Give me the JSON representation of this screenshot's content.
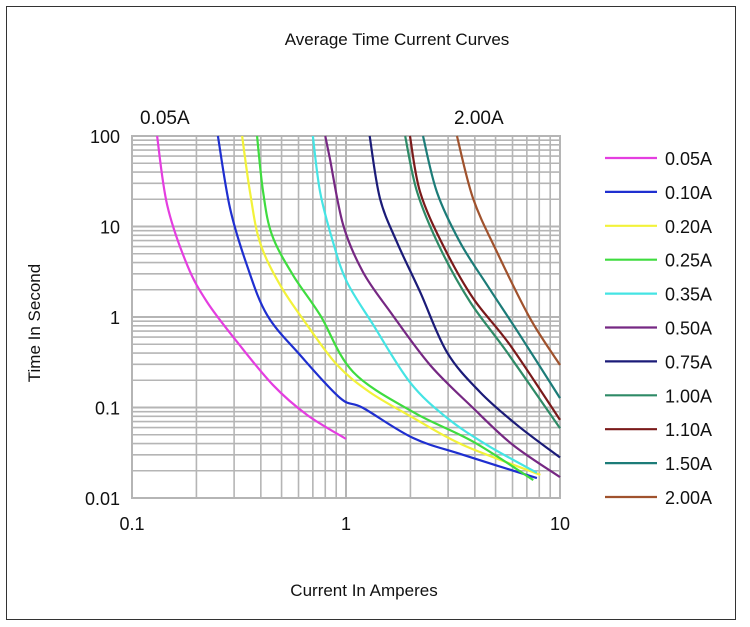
{
  "chart_data": {
    "type": "line",
    "title": "Average Time Current Curves",
    "xlabel": "Current In Amperes",
    "ylabel": "Time In Second",
    "xscale": "log",
    "yscale": "log",
    "xlim": [
      0.1,
      10
    ],
    "ylim": [
      0.01,
      100
    ],
    "xticks": [
      "0.1",
      "1",
      "10"
    ],
    "yticks": [
      "100",
      "10",
      "1",
      "0.1",
      "0.01"
    ],
    "grid": true,
    "legend": "right",
    "annotations": [
      "0.05A",
      "2.00A"
    ],
    "series": [
      {
        "name": "0.05A",
        "color": "#e43ee0",
        "points": [
          [
            0.131,
            100
          ],
          [
            0.146,
            17.3
          ],
          [
            0.181,
            3.76
          ],
          [
            0.224,
            1.47
          ],
          [
            0.31,
            0.53
          ],
          [
            0.456,
            0.177
          ],
          [
            0.657,
            0.083
          ],
          [
            1.0,
            0.045
          ]
        ]
      },
      {
        "name": "0.10A",
        "color": "#1f2fd0",
        "points": [
          [
            0.252,
            100
          ],
          [
            0.287,
            16
          ],
          [
            0.344,
            3.76
          ],
          [
            0.428,
            1.05
          ],
          [
            0.61,
            0.38
          ],
          [
            0.94,
            0.127
          ],
          [
            1.2,
            0.099
          ],
          [
            2.06,
            0.046
          ],
          [
            3.52,
            0.03
          ],
          [
            7.8,
            0.0166
          ]
        ]
      },
      {
        "name": "0.20A",
        "color": "#f2f23a",
        "points": [
          [
            0.327,
            100
          ],
          [
            0.356,
            24
          ],
          [
            0.396,
            6.7
          ],
          [
            0.492,
            2.26
          ],
          [
            0.657,
            0.82
          ],
          [
            0.91,
            0.295
          ],
          [
            1.29,
            0.148
          ],
          [
            2.06,
            0.077
          ],
          [
            3.52,
            0.0385
          ],
          [
            8.1,
            0.018
          ]
        ]
      },
      {
        "name": "0.25A",
        "color": "#3fdc3f",
        "points": [
          [
            0.384,
            100
          ],
          [
            0.41,
            24
          ],
          [
            0.451,
            8.05
          ],
          [
            0.565,
            2.91
          ],
          [
            0.757,
            1.05
          ],
          [
            1.08,
            0.247
          ],
          [
            2.06,
            0.089
          ],
          [
            3.92,
            0.042
          ],
          [
            7.5,
            0.0158
          ]
        ]
      },
      {
        "name": "0.35A",
        "color": "#45e4e4",
        "points": [
          [
            0.7,
            100
          ],
          [
            0.757,
            24
          ],
          [
            0.87,
            6.7
          ],
          [
            1.01,
            2.44
          ],
          [
            1.34,
            0.82
          ],
          [
            1.99,
            0.19
          ],
          [
            2.96,
            0.077
          ],
          [
            4.56,
            0.0385
          ],
          [
            7.8,
            0.019
          ]
        ]
      },
      {
        "name": "0.50A",
        "color": "#762883",
        "points": [
          [
            0.8,
            100
          ],
          [
            0.84,
            57
          ],
          [
            0.97,
            10.4
          ],
          [
            1.2,
            3.14
          ],
          [
            1.61,
            1.14
          ],
          [
            2.47,
            0.295
          ],
          [
            3.92,
            0.099
          ],
          [
            6.03,
            0.0385
          ],
          [
            10,
            0.017
          ]
        ]
      },
      {
        "name": "0.75A",
        "color": "#1b1b78",
        "points": [
          [
            1.29,
            100
          ],
          [
            1.44,
            20.6
          ],
          [
            1.73,
            6.7
          ],
          [
            2.22,
            1.89
          ],
          [
            2.96,
            0.41
          ],
          [
            4.23,
            0.148
          ],
          [
            6.3,
            0.064
          ],
          [
            10,
            0.028
          ]
        ]
      },
      {
        "name": "1.00A",
        "color": "#2e8a66",
        "points": [
          [
            1.89,
            100
          ],
          [
            2.15,
            24
          ],
          [
            2.75,
            5.8
          ],
          [
            3.8,
            1.47
          ],
          [
            5.65,
            0.41
          ],
          [
            10,
            0.059
          ]
        ]
      },
      {
        "name": "1.10A",
        "color": "#7a1a1a",
        "points": [
          [
            1.99,
            100
          ],
          [
            2.22,
            24
          ],
          [
            2.84,
            6.2
          ],
          [
            3.92,
            1.62
          ],
          [
            5.84,
            0.49
          ],
          [
            10,
            0.073
          ]
        ]
      },
      {
        "name": "1.50A",
        "color": "#1c7c78",
        "points": [
          [
            2.29,
            100
          ],
          [
            2.66,
            24
          ],
          [
            3.41,
            6.7
          ],
          [
            4.56,
            2.26
          ],
          [
            6.5,
            0.63
          ],
          [
            10,
            0.127
          ]
        ]
      },
      {
        "name": "2.00A",
        "color": "#a0522d",
        "points": [
          [
            3.3,
            100
          ],
          [
            3.92,
            20.6
          ],
          [
            5.08,
            5.2
          ],
          [
            7.24,
            0.97
          ],
          [
            10,
            0.295
          ]
        ]
      }
    ]
  }
}
